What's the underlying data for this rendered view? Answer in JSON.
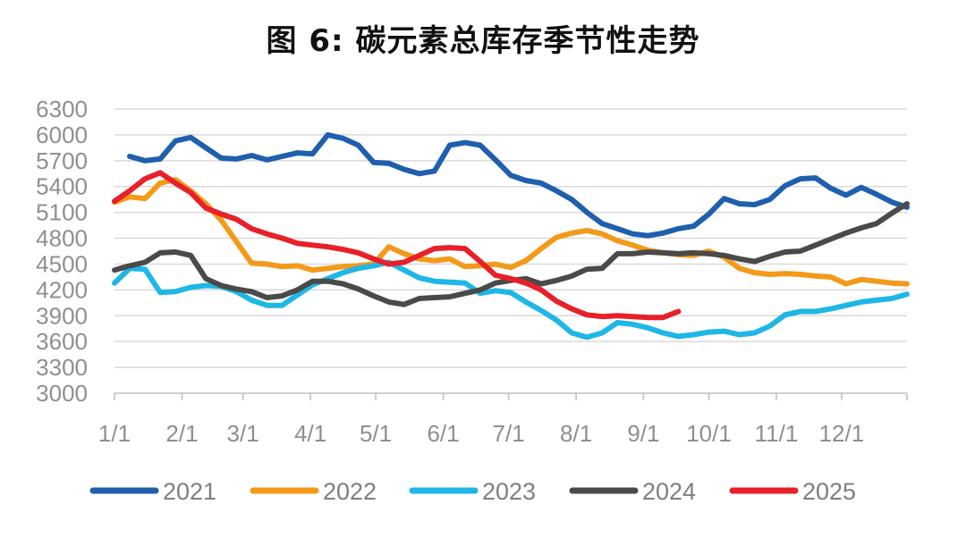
{
  "chart_data": {
    "type": "line",
    "title": "图 6: 碳元素总库存季节性走势",
    "xlabel": "",
    "ylabel": "",
    "ylim": [
      3000,
      6300
    ],
    "yticks": [
      3000,
      3300,
      3600,
      3900,
      4200,
      4500,
      4800,
      5100,
      5400,
      5700,
      6000,
      6300
    ],
    "x_range": [
      0,
      52
    ],
    "x_ticks": [
      {
        "label": "1/1",
        "week": 0
      },
      {
        "label": "2/1",
        "week": 4.43
      },
      {
        "label": "3/1",
        "week": 8.43
      },
      {
        "label": "4/1",
        "week": 12.86
      },
      {
        "label": "5/1",
        "week": 17.14
      },
      {
        "label": "6/1",
        "week": 21.57
      },
      {
        "label": "7/1",
        "week": 25.86
      },
      {
        "label": "8/1",
        "week": 30.29
      },
      {
        "label": "9/1",
        "week": 34.71
      },
      {
        "label": "10/1",
        "week": 39.0
      },
      {
        "label": "11/1",
        "week": 43.43
      },
      {
        "label": "12/1",
        "week": 47.71
      }
    ],
    "legend_position": "bottom",
    "series": [
      {
        "name": "2021",
        "color": "#1f5fae",
        "x": [
          1,
          2,
          3,
          4,
          5,
          6,
          7,
          8,
          9,
          10,
          11,
          12,
          13,
          14,
          15,
          16,
          17,
          18,
          19,
          20,
          21,
          22,
          23,
          24,
          25,
          26,
          27,
          28,
          29,
          30,
          31,
          32,
          33,
          34,
          35,
          36,
          37,
          38,
          39,
          40,
          41,
          42,
          43,
          44,
          45,
          46,
          47,
          48,
          49,
          50,
          51,
          52
        ],
        "values": [
          5750,
          5700,
          5720,
          5930,
          5970,
          5850,
          5730,
          5720,
          5760,
          5710,
          5750,
          5790,
          5780,
          6000,
          5960,
          5880,
          5680,
          5670,
          5600,
          5550,
          5580,
          5880,
          5910,
          5880,
          5710,
          5530,
          5470,
          5440,
          5350,
          5250,
          5100,
          4970,
          4910,
          4850,
          4830,
          4860,
          4910,
          4940,
          5080,
          5260,
          5200,
          5190,
          5250,
          5410,
          5490,
          5500,
          5380,
          5300,
          5390,
          5310,
          5220,
          5160
        ]
      },
      {
        "name": "2022",
        "color": "#f39a1a",
        "x": [
          0,
          1,
          2,
          3,
          4,
          5,
          6,
          7,
          8,
          9,
          10,
          11,
          12,
          13,
          14,
          15,
          16,
          17,
          18,
          19,
          20,
          21,
          22,
          23,
          24,
          25,
          26,
          27,
          28,
          29,
          30,
          31,
          32,
          33,
          34,
          35,
          36,
          37,
          38,
          39,
          40,
          41,
          42,
          43,
          44,
          45,
          46,
          47,
          48,
          49,
          50,
          51,
          52
        ],
        "values": [
          5220,
          5280,
          5260,
          5440,
          5480,
          5350,
          5200,
          5010,
          4760,
          4510,
          4500,
          4470,
          4480,
          4430,
          4450,
          4470,
          4480,
          4500,
          4700,
          4620,
          4560,
          4540,
          4560,
          4470,
          4480,
          4500,
          4460,
          4540,
          4680,
          4810,
          4860,
          4890,
          4850,
          4770,
          4720,
          4660,
          4630,
          4610,
          4600,
          4650,
          4580,
          4450,
          4400,
          4380,
          4390,
          4380,
          4360,
          4350,
          4270,
          4320,
          4300,
          4280,
          4270
        ]
      },
      {
        "name": "2023",
        "color": "#1eb7e6",
        "x": [
          0,
          1,
          2,
          3,
          4,
          5,
          6,
          7,
          8,
          9,
          10,
          11,
          12,
          13,
          14,
          15,
          16,
          17,
          18,
          19,
          20,
          21,
          22,
          23,
          24,
          25,
          26,
          27,
          28,
          29,
          30,
          31,
          32,
          33,
          34,
          35,
          36,
          37,
          38,
          39,
          40,
          41,
          42,
          43,
          44,
          45,
          46,
          47,
          48,
          49,
          50,
          51,
          52
        ],
        "values": [
          4280,
          4450,
          4440,
          4170,
          4180,
          4230,
          4250,
          4240,
          4180,
          4080,
          4020,
          4020,
          4140,
          4260,
          4330,
          4400,
          4450,
          4480,
          4520,
          4430,
          4340,
          4300,
          4290,
          4280,
          4160,
          4190,
          4170,
          4060,
          3960,
          3850,
          3700,
          3650,
          3700,
          3820,
          3800,
          3760,
          3700,
          3660,
          3680,
          3710,
          3720,
          3680,
          3700,
          3780,
          3910,
          3950,
          3950,
          3980,
          4020,
          4060,
          4080,
          4100,
          4150
        ]
      },
      {
        "name": "2024",
        "color": "#4a4a4a",
        "x": [
          0,
          1,
          2,
          3,
          4,
          5,
          6,
          7,
          8,
          9,
          10,
          11,
          12,
          13,
          14,
          15,
          16,
          17,
          18,
          19,
          20,
          21,
          22,
          23,
          24,
          25,
          26,
          27,
          28,
          29,
          30,
          31,
          32,
          33,
          34,
          35,
          36,
          37,
          38,
          39,
          40,
          41,
          42,
          43,
          44,
          45,
          46,
          47,
          48,
          49,
          50,
          51,
          52
        ],
        "values": [
          4430,
          4480,
          4520,
          4630,
          4640,
          4600,
          4330,
          4250,
          4210,
          4180,
          4110,
          4130,
          4200,
          4300,
          4300,
          4270,
          4210,
          4130,
          4060,
          4030,
          4100,
          4110,
          4120,
          4160,
          4200,
          4280,
          4310,
          4330,
          4270,
          4310,
          4360,
          4440,
          4450,
          4620,
          4620,
          4640,
          4630,
          4620,
          4630,
          4620,
          4600,
          4560,
          4530,
          4590,
          4640,
          4650,
          4720,
          4790,
          4860,
          4920,
          4970,
          5090,
          5200
        ]
      },
      {
        "name": "2025",
        "color": "#e8202a",
        "x": [
          0,
          1,
          2,
          3,
          4,
          5,
          6,
          7,
          8,
          9,
          10,
          11,
          12,
          13,
          14,
          15,
          16,
          17,
          18,
          19,
          20,
          21,
          22,
          23,
          24,
          25,
          26,
          27,
          28,
          29,
          30,
          31,
          32,
          33,
          34,
          35,
          36,
          37
        ],
        "values": [
          5230,
          5350,
          5490,
          5560,
          5440,
          5330,
          5150,
          5080,
          5020,
          4910,
          4850,
          4800,
          4740,
          4720,
          4700,
          4670,
          4630,
          4560,
          4500,
          4520,
          4600,
          4680,
          4690,
          4680,
          4530,
          4370,
          4330,
          4280,
          4200,
          4070,
          3980,
          3910,
          3890,
          3900,
          3890,
          3880,
          3880,
          3950
        ]
      }
    ]
  }
}
